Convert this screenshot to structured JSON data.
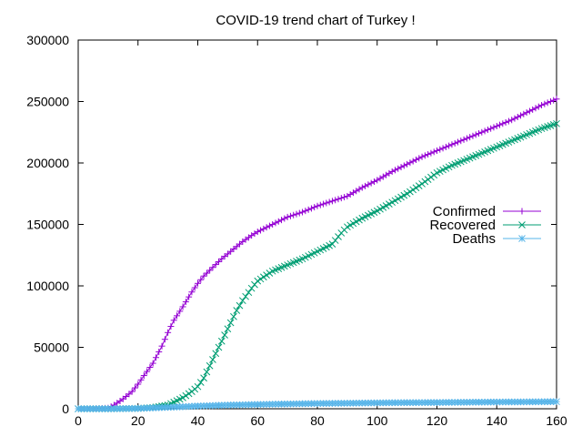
{
  "chart_data": {
    "type": "line",
    "title": "COVID-19 trend chart of Turkey !",
    "xlabel": "",
    "ylabel": "",
    "xlim": [
      0,
      160
    ],
    "ylim": [
      0,
      300000
    ],
    "x_ticks": [
      "0",
      "20",
      "40",
      "60",
      "80",
      "100",
      "120",
      "140",
      "160"
    ],
    "y_ticks": [
      "0",
      "50000",
      "100000",
      "150000",
      "200000",
      "250000",
      "300000"
    ],
    "grid": false,
    "legend_position": "right",
    "series": [
      {
        "name": "Confirmed",
        "color": "#9400d3",
        "marker": "plus",
        "x": [
          0,
          5,
          10,
          12,
          15,
          18,
          20,
          22,
          25,
          28,
          30,
          32,
          35,
          38,
          40,
          42,
          45,
          48,
          50,
          52,
          55,
          58,
          60,
          65,
          70,
          75,
          80,
          85,
          90,
          95,
          100,
          105,
          110,
          115,
          120,
          125,
          130,
          135,
          140,
          145,
          150,
          155,
          160
        ],
        "y": [
          0,
          50,
          600,
          3000,
          8000,
          14000,
          20000,
          27000,
          37000,
          51000,
          62000,
          72000,
          83000,
          95000,
          102000,
          108000,
          115000,
          122000,
          126000,
          130000,
          136000,
          141000,
          144000,
          150000,
          156000,
          160000,
          165000,
          169000,
          173000,
          180000,
          186000,
          193000,
          199000,
          205000,
          210000,
          215000,
          220000,
          225000,
          230000,
          235000,
          241000,
          247000,
          252000
        ]
      },
      {
        "name": "Recovered",
        "color": "#009e73",
        "marker": "cross",
        "x": [
          0,
          10,
          20,
          25,
          30,
          35,
          38,
          40,
          42,
          45,
          48,
          50,
          53,
          55,
          58,
          60,
          65,
          70,
          75,
          80,
          85,
          88,
          90,
          95,
          100,
          105,
          110,
          115,
          120,
          125,
          130,
          135,
          140,
          145,
          150,
          155,
          160
        ],
        "y": [
          0,
          0,
          300,
          1000,
          3000,
          9000,
          14000,
          18000,
          25000,
          40000,
          55000,
          65000,
          80000,
          88000,
          98000,
          104000,
          112000,
          117000,
          122000,
          128000,
          134000,
          143000,
          148000,
          155000,
          161000,
          168000,
          175000,
          183000,
          192000,
          198000,
          203000,
          208000,
          213000,
          218000,
          223000,
          228000,
          232000
        ]
      },
      {
        "name": "Deaths",
        "color": "#56b4e9",
        "marker": "star",
        "x": [
          0,
          10,
          20,
          30,
          40,
          50,
          60,
          70,
          80,
          90,
          100,
          110,
          120,
          130,
          140,
          150,
          160
        ],
        "y": [
          0,
          0,
          300,
          1200,
          2200,
          3000,
          3500,
          3900,
          4300,
          4500,
          4800,
          5000,
          5100,
          5300,
          5500,
          5600,
          5800
        ]
      }
    ]
  }
}
